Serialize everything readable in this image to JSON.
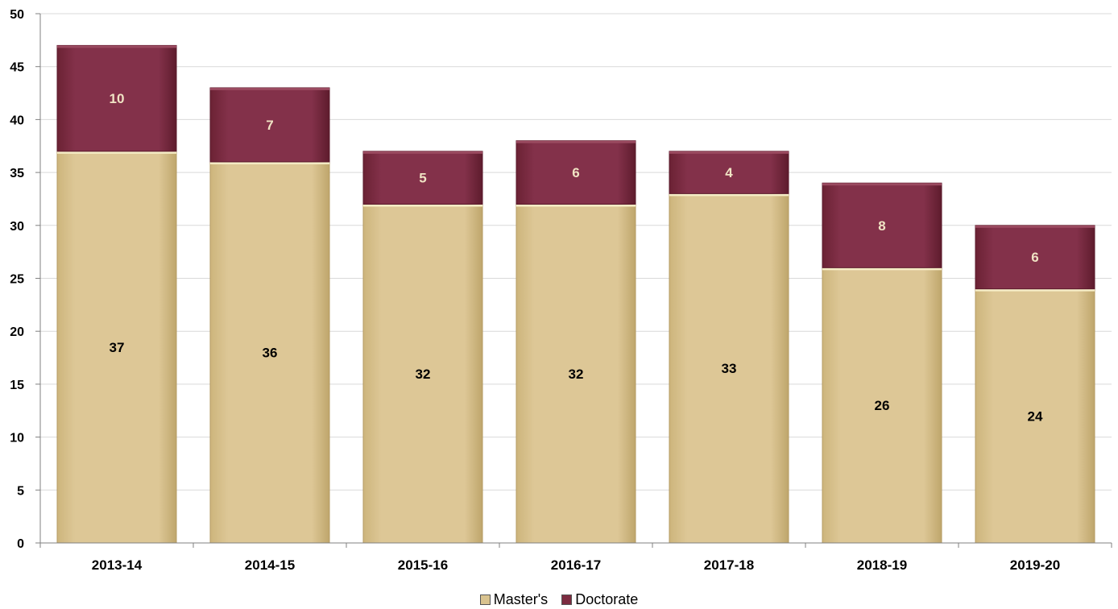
{
  "chart_data": {
    "type": "bar",
    "stacked": true,
    "categories": [
      "2013-14",
      "2014-15",
      "2015-16",
      "2016-17",
      "2017-18",
      "2018-19",
      "2019-20"
    ],
    "series": [
      {
        "name": "Master's",
        "values": [
          37,
          36,
          32,
          32,
          33,
          26,
          24
        ],
        "color": "#d9c38f"
      },
      {
        "name": "Doctorate",
        "values": [
          10,
          7,
          5,
          6,
          4,
          8,
          6
        ],
        "color": "#7c2b40"
      }
    ],
    "title": "",
    "xlabel": "",
    "ylabel": "",
    "ylim": [
      0,
      50
    ],
    "yticks": [
      0,
      5,
      10,
      15,
      20,
      25,
      30,
      35,
      40,
      45,
      50
    ],
    "grid": true,
    "legend_position": "bottom"
  }
}
